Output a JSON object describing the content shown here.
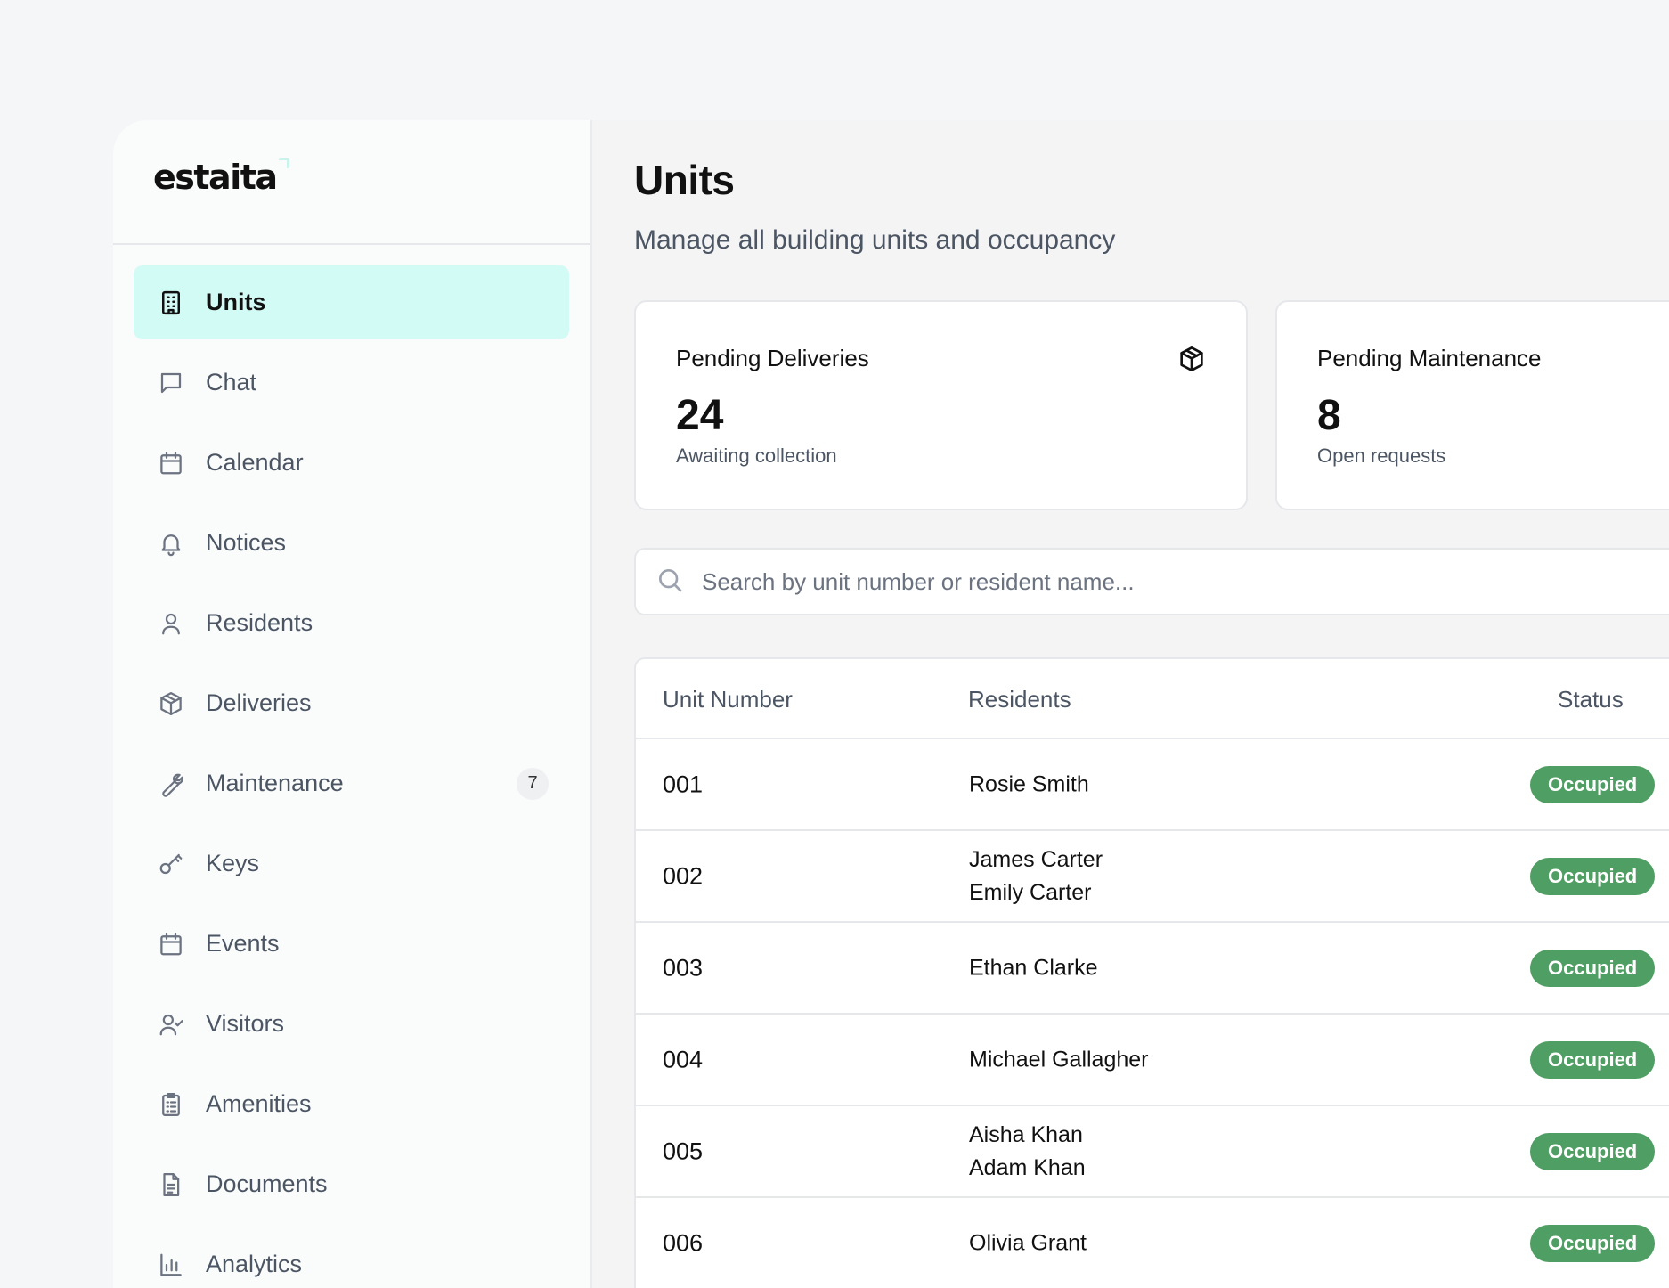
{
  "brand": {
    "name": "estaita"
  },
  "sidebar": {
    "items": [
      {
        "label": "Units",
        "icon": "building-icon",
        "active": true
      },
      {
        "label": "Chat",
        "icon": "message-square-icon"
      },
      {
        "label": "Calendar",
        "icon": "calendar-icon"
      },
      {
        "label": "Notices",
        "icon": "bell-icon"
      },
      {
        "label": "Residents",
        "icon": "user-icon"
      },
      {
        "label": "Deliveries",
        "icon": "package-icon"
      },
      {
        "label": "Maintenance",
        "icon": "wrench-icon",
        "badge": "7"
      },
      {
        "label": "Keys",
        "icon": "key-icon"
      },
      {
        "label": "Events",
        "icon": "calendar-icon"
      },
      {
        "label": "Visitors",
        "icon": "user-check-icon"
      },
      {
        "label": "Amenities",
        "icon": "clipboard-list-icon"
      },
      {
        "label": "Documents",
        "icon": "file-text-icon"
      },
      {
        "label": "Analytics",
        "icon": "bar-chart-icon"
      }
    ]
  },
  "header": {
    "title": "Units",
    "subtitle": "Manage all building units and occupancy"
  },
  "cards": {
    "deliveries": {
      "title": "Pending Deliveries",
      "value": "24",
      "subtitle": "Awaiting collection",
      "icon": "package-icon"
    },
    "maintenance": {
      "title": "Pending Maintenance",
      "value": "8",
      "subtitle": "Open requests"
    }
  },
  "search": {
    "placeholder": "Search by unit number or resident name...",
    "value": ""
  },
  "table": {
    "columns": {
      "unit": "Unit Number",
      "residents": "Residents",
      "status": "Status"
    },
    "rows": [
      {
        "unit": "001",
        "resident1": "Rosie Smith",
        "resident2": "",
        "status": "Occupied"
      },
      {
        "unit": "002",
        "resident1": "James Carter",
        "resident2": "Emily Carter",
        "status": "Occupied"
      },
      {
        "unit": "003",
        "resident1": "Ethan Clarke",
        "resident2": "",
        "status": "Occupied"
      },
      {
        "unit": "004",
        "resident1": "Michael Gallagher",
        "resident2": "",
        "status": "Occupied"
      },
      {
        "unit": "005",
        "resident1": "Aisha Khan",
        "resident2": "Adam Khan",
        "status": "Occupied"
      },
      {
        "unit": "006",
        "resident1": "Olivia Grant",
        "resident2": "",
        "status": "Occupied"
      }
    ]
  },
  "colors": {
    "active_bg": "#d3fbf6",
    "status_occupied": "#4f9e63",
    "page_bg": "#f4f4f5"
  }
}
